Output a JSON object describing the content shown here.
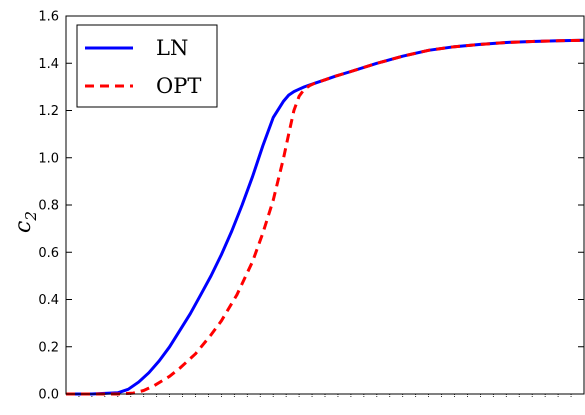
{
  "chart_data": {
    "type": "line",
    "title": "",
    "xlabel": "",
    "ylabel": "c₂",
    "ylabel_base": "c",
    "ylabel_sub": "2",
    "ylim": [
      0.0,
      1.6
    ],
    "yticks": [
      0.0,
      0.2,
      0.4,
      0.6,
      0.8,
      1.0,
      1.2,
      1.4,
      1.6
    ],
    "ytick_labels": [
      "0.0",
      "0.2",
      "0.4",
      "0.6",
      "0.8",
      "1.0",
      "1.2",
      "1.4",
      "1.6"
    ],
    "xlim": [
      0,
      1
    ],
    "x_tick_labels_visible": false,
    "grid": false,
    "legend_position": "upper-left",
    "series": [
      {
        "name": "LN",
        "color": "#0000ff",
        "style": "solid",
        "x": [
          0.0,
          0.05,
          0.1,
          0.12,
          0.14,
          0.16,
          0.18,
          0.2,
          0.22,
          0.24,
          0.26,
          0.28,
          0.3,
          0.32,
          0.34,
          0.36,
          0.38,
          0.4,
          0.42,
          0.43,
          0.44,
          0.45,
          0.46,
          0.47,
          0.48,
          0.5,
          0.52,
          0.55,
          0.6,
          0.65,
          0.7,
          0.75,
          0.8,
          0.85,
          0.9,
          0.95,
          1.0
        ],
        "y": [
          0.0,
          0.0,
          0.005,
          0.02,
          0.05,
          0.09,
          0.14,
          0.2,
          0.27,
          0.34,
          0.42,
          0.5,
          0.59,
          0.69,
          0.8,
          0.92,
          1.05,
          1.17,
          1.24,
          1.265,
          1.28,
          1.29,
          1.3,
          1.308,
          1.315,
          1.33,
          1.345,
          1.365,
          1.4,
          1.43,
          1.455,
          1.47,
          1.48,
          1.488,
          1.492,
          1.495,
          1.497
        ]
      },
      {
        "name": "OPT",
        "color": "#ff0000",
        "style": "dashed",
        "x": [
          0.0,
          0.1,
          0.13,
          0.15,
          0.17,
          0.2,
          0.22,
          0.25,
          0.28,
          0.3,
          0.33,
          0.36,
          0.38,
          0.4,
          0.42,
          0.43,
          0.44,
          0.45,
          0.46,
          0.47,
          0.48,
          0.5,
          0.52,
          0.55,
          0.6,
          0.65,
          0.7,
          0.75,
          0.8,
          0.85,
          0.9,
          0.95,
          1.0
        ],
        "y": [
          0.0,
          0.0,
          0.004,
          0.015,
          0.035,
          0.075,
          0.11,
          0.17,
          0.25,
          0.31,
          0.42,
          0.56,
          0.68,
          0.82,
          1.0,
          1.1,
          1.2,
          1.26,
          1.29,
          1.305,
          1.315,
          1.33,
          1.345,
          1.365,
          1.4,
          1.43,
          1.455,
          1.47,
          1.48,
          1.488,
          1.492,
          1.495,
          1.497
        ]
      }
    ]
  }
}
